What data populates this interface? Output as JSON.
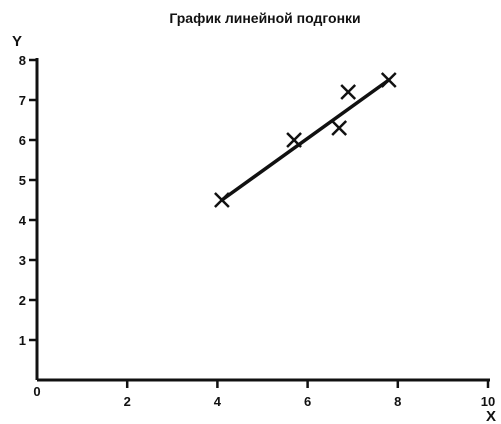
{
  "chart_data": {
    "type": "scatter",
    "title": "График линейной подгонки",
    "xlabel": "X",
    "ylabel": "Y",
    "xlim": [
      0,
      10
    ],
    "ylim": [
      0,
      8
    ],
    "x_ticks": [
      "2",
      "4",
      "6",
      "8",
      "10"
    ],
    "y_ticks": [
      "1",
      "2",
      "3",
      "4",
      "5",
      "6",
      "7",
      "8"
    ],
    "origin_label": "0",
    "grid": false,
    "points": [
      {
        "x": 4.1,
        "y": 4.5
      },
      {
        "x": 5.7,
        "y": 6.0
      },
      {
        "x": 6.7,
        "y": 6.3
      },
      {
        "x": 6.9,
        "y": 7.2
      },
      {
        "x": 7.8,
        "y": 7.5
      }
    ],
    "fit_line": {
      "x": [
        4.1,
        7.8
      ],
      "y": [
        4.5,
        7.5
      ]
    }
  }
}
